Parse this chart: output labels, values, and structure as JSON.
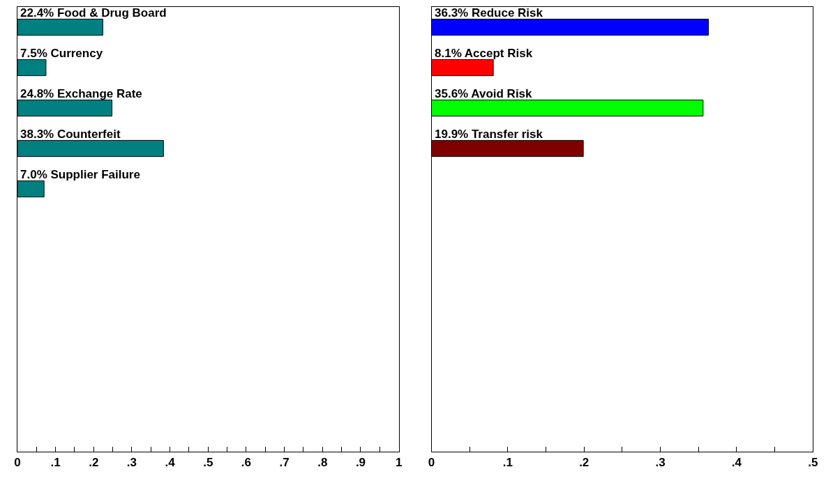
{
  "chart_data": [
    {
      "type": "bar",
      "orientation": "horizontal",
      "categories": [
        "Food & Drug Board",
        "Currency",
        "Exchange Rate",
        "Counterfeit",
        "Supplier Failure",
        null,
        null,
        null,
        null,
        null,
        null
      ],
      "values": [
        0.224,
        0.075,
        0.248,
        0.383,
        0.07,
        null,
        null,
        null,
        null,
        null,
        null
      ],
      "value_labels": [
        "22.4%",
        "7.5%",
        "24.8%",
        "38.3%",
        "7.0%",
        null,
        null,
        null,
        null,
        null,
        null
      ],
      "color": "#008080",
      "xlim": [
        0,
        1
      ],
      "xticks": [
        0,
        {
          "value": 0.05,
          "label": null
        },
        {
          "value": 0.1,
          "label": ".1"
        },
        {
          "value": 0.15,
          "label": null
        },
        {
          "value": 0.2,
          "label": ".2"
        },
        {
          "value": 0.25,
          "label": null
        },
        {
          "value": 0.3,
          "label": ".3"
        },
        {
          "value": 0.35,
          "label": null
        },
        {
          "value": 0.4,
          "label": ".4"
        },
        {
          "value": 0.45,
          "label": null
        },
        {
          "value": 0.5,
          "label": ".5"
        },
        {
          "value": 0.55,
          "label": null
        },
        {
          "value": 0.6,
          "label": ".6"
        },
        {
          "value": 0.65,
          "label": null
        },
        {
          "value": 0.7,
          "label": ".7"
        },
        {
          "value": 0.75,
          "label": null
        },
        {
          "value": 0.8,
          "label": ".8"
        },
        {
          "value": 0.85,
          "label": null
        },
        {
          "value": 0.9,
          "label": ".9"
        },
        {
          "value": 0.95,
          "label": null
        },
        1
      ],
      "tick_labels": "x"
    },
    {
      "type": "bar",
      "orientation": "horizontal",
      "categories": [
        "Reduce Risk",
        "Accept Risk",
        "Avoid Risk",
        "Transfer risk",
        null,
        null,
        null,
        null,
        null,
        null,
        null
      ],
      "values": [
        0.363,
        0.081,
        0.356,
        0.199,
        null,
        null,
        null,
        null,
        null,
        null,
        null
      ],
      "value_labels": [
        "36.3%",
        "8.1%",
        "35.6%",
        "19.9%",
        null,
        null,
        null,
        null,
        null,
        null,
        null
      ],
      "colors": [
        "#0000ff",
        "#ff0000",
        "#00ff00",
        "#800000",
        null,
        null,
        null,
        null,
        null,
        null,
        null
      ],
      "xlim": [
        0,
        0.5
      ],
      "xticks": [
        0,
        {
          "value": 0.05,
          "label": null
        },
        {
          "value": 0.1,
          "label": ".1"
        },
        {
          "value": 0.15,
          "label": null
        },
        {
          "value": 0.2,
          "label": ".2"
        },
        {
          "value": 0.25,
          "label": null
        },
        {
          "value": 0.3,
          "label": ".3"
        },
        {
          "value": 0.35,
          "label": null
        },
        {
          "value": 0.4,
          "label": ".4"
        },
        {
          "value": 0.45,
          "label": null
        },
        {
          "value": 0.5,
          "label": ".5"
        }
      ],
      "tick_labels": "x"
    }
  ]
}
